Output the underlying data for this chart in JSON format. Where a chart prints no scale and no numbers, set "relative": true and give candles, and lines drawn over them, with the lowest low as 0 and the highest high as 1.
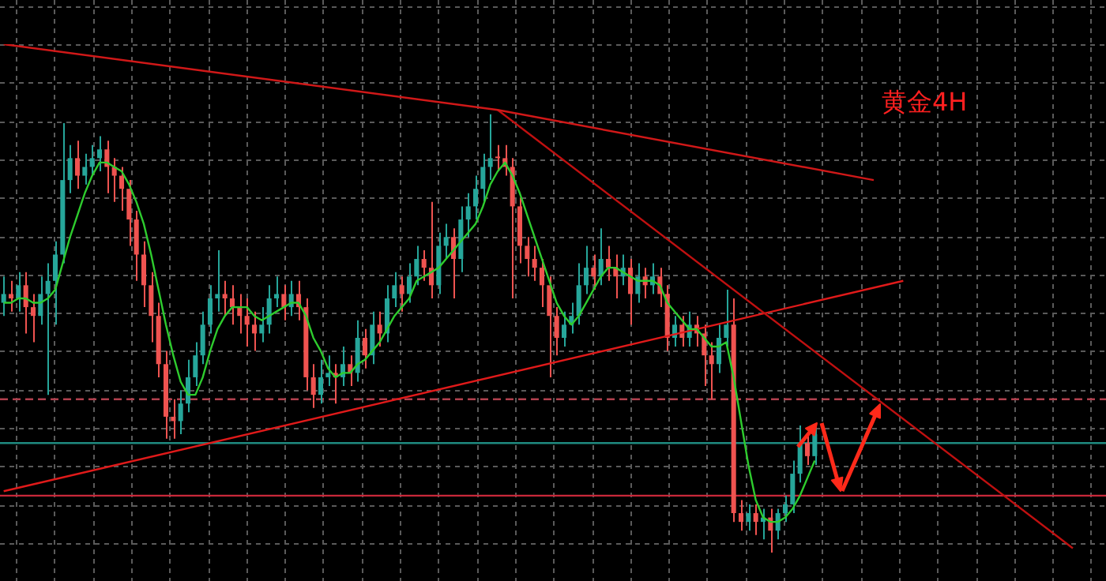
{
  "chart_data": {
    "type": "candlestick",
    "relative": true,
    "grid": true,
    "categories": [
      null,
      null,
      null,
      null,
      null,
      null,
      null,
      null,
      null,
      null,
      null,
      null,
      null,
      null,
      null,
      null,
      null,
      null,
      null,
      null,
      null,
      null,
      null,
      null,
      null,
      null,
      null,
      null,
      null,
      null,
      null,
      null,
      null,
      null,
      null,
      null,
      null,
      null,
      null,
      null,
      null,
      null,
      null,
      null,
      null,
      null,
      null,
      null,
      null,
      null,
      null,
      null,
      null,
      null,
      null,
      null,
      null,
      null,
      null,
      null,
      null,
      null,
      null,
      null,
      null,
      null,
      null,
      null,
      null,
      null,
      null,
      null,
      null,
      null,
      null,
      null,
      null,
      null,
      null,
      null,
      null,
      null,
      null,
      null,
      null,
      null,
      null,
      null,
      null,
      null,
      null,
      null,
      null,
      null,
      null,
      null,
      null,
      null,
      null,
      null,
      null,
      null,
      null,
      null,
      null,
      null,
      null,
      null,
      null,
      null,
      null,
      null,
      null,
      null,
      null,
      null,
      null,
      null,
      null,
      null,
      null,
      null,
      null,
      null,
      null,
      null,
      null,
      null,
      null,
      null,
      null,
      null,
      null,
      null,
      null,
      null,
      null,
      null,
      null,
      null,
      null,
      null,
      null,
      null,
      null,
      null,
      null,
      null,
      null,
      null
    ],
    "ohlc": [
      [
        0.57,
        0.63,
        0.54,
        0.59
      ],
      [
        0.59,
        0.62,
        0.55,
        0.58
      ],
      [
        0.58,
        0.64,
        0.55,
        0.61
      ],
      [
        0.61,
        0.64,
        0.5,
        0.56
      ],
      [
        0.56,
        0.59,
        0.48,
        0.54
      ],
      [
        0.54,
        0.63,
        0.52,
        0.59
      ],
      [
        0.59,
        0.66,
        0.36,
        0.62
      ],
      [
        0.62,
        0.71,
        0.52,
        0.68
      ],
      [
        0.68,
        0.98,
        0.66,
        0.85
      ],
      [
        0.85,
        0.93,
        0.82,
        0.9
      ],
      [
        0.9,
        0.94,
        0.83,
        0.86
      ],
      [
        0.86,
        0.91,
        0.84,
        0.88
      ],
      [
        0.88,
        0.93,
        0.86,
        0.9
      ],
      [
        0.9,
        0.95,
        0.87,
        0.92
      ],
      [
        0.92,
        0.94,
        0.82,
        0.88
      ],
      [
        0.88,
        0.9,
        0.8,
        0.86
      ],
      [
        0.86,
        0.88,
        0.78,
        0.83
      ],
      [
        0.83,
        0.85,
        0.7,
        0.76
      ],
      [
        0.76,
        0.78,
        0.62,
        0.68
      ],
      [
        0.68,
        0.71,
        0.56,
        0.61
      ],
      [
        0.61,
        0.64,
        0.48,
        0.54
      ],
      [
        0.54,
        0.57,
        0.4,
        0.43
      ],
      [
        0.43,
        0.46,
        0.26,
        0.31
      ],
      [
        0.31,
        0.35,
        0.26,
        0.3
      ],
      [
        0.3,
        0.37,
        0.27,
        0.34
      ],
      [
        0.34,
        0.44,
        0.32,
        0.4
      ],
      [
        0.4,
        0.48,
        0.38,
        0.45
      ],
      [
        0.45,
        0.55,
        0.43,
        0.52
      ],
      [
        0.52,
        0.61,
        0.5,
        0.58
      ],
      [
        0.58,
        0.69,
        0.55,
        0.59
      ],
      [
        0.59,
        0.62,
        0.54,
        0.58
      ],
      [
        0.58,
        0.61,
        0.52,
        0.56
      ],
      [
        0.56,
        0.59,
        0.5,
        0.54
      ],
      [
        0.54,
        0.58,
        0.47,
        0.52
      ],
      [
        0.52,
        0.55,
        0.46,
        0.5
      ],
      [
        0.5,
        0.56,
        0.48,
        0.52
      ],
      [
        0.52,
        0.61,
        0.5,
        0.58
      ],
      [
        0.58,
        0.63,
        0.56,
        0.59
      ],
      [
        0.59,
        0.61,
        0.53,
        0.56
      ],
      [
        0.56,
        0.62,
        0.54,
        0.59
      ],
      [
        0.59,
        0.62,
        0.53,
        0.56
      ],
      [
        0.56,
        0.58,
        0.37,
        0.4
      ],
      [
        0.4,
        0.43,
        0.33,
        0.36
      ],
      [
        0.36,
        0.44,
        0.34,
        0.4
      ],
      [
        0.4,
        0.45,
        0.38,
        0.41
      ],
      [
        0.41,
        0.43,
        0.34,
        0.4
      ],
      [
        0.4,
        0.47,
        0.38,
        0.43
      ],
      [
        0.43,
        0.45,
        0.38,
        0.41
      ],
      [
        0.41,
        0.53,
        0.39,
        0.49
      ],
      [
        0.49,
        0.51,
        0.42,
        0.45
      ],
      [
        0.45,
        0.55,
        0.43,
        0.52
      ],
      [
        0.52,
        0.55,
        0.47,
        0.5
      ],
      [
        0.5,
        0.61,
        0.48,
        0.58
      ],
      [
        0.58,
        0.64,
        0.56,
        0.61
      ],
      [
        0.61,
        0.63,
        0.55,
        0.59
      ],
      [
        0.59,
        0.66,
        0.57,
        0.63
      ],
      [
        0.63,
        0.7,
        0.61,
        0.67
      ],
      [
        0.67,
        0.69,
        0.62,
        0.65
      ],
      [
        0.65,
        0.8,
        0.58,
        0.61
      ],
      [
        0.61,
        0.73,
        0.59,
        0.7
      ],
      [
        0.7,
        0.75,
        0.67,
        0.72
      ],
      [
        0.72,
        0.74,
        0.58,
        0.67
      ],
      [
        0.67,
        0.79,
        0.64,
        0.76
      ],
      [
        0.76,
        0.82,
        0.72,
        0.79
      ],
      [
        0.79,
        0.86,
        0.76,
        0.83
      ],
      [
        0.83,
        0.91,
        0.8,
        0.88
      ],
      [
        0.88,
        1.0,
        0.85,
        0.9
      ],
      [
        0.9,
        0.93,
        0.87,
        0.9
      ],
      [
        0.9,
        0.93,
        0.86,
        0.88
      ],
      [
        0.88,
        0.9,
        0.58,
        0.79
      ],
      [
        0.79,
        0.81,
        0.66,
        0.7
      ],
      [
        0.7,
        0.72,
        0.63,
        0.67
      ],
      [
        0.67,
        0.7,
        0.62,
        0.65
      ],
      [
        0.65,
        0.67,
        0.56,
        0.61
      ],
      [
        0.61,
        0.63,
        0.4,
        0.54
      ],
      [
        0.54,
        0.56,
        0.45,
        0.49
      ],
      [
        0.49,
        0.55,
        0.47,
        0.52
      ],
      [
        0.52,
        0.57,
        0.5,
        0.54
      ],
      [
        0.54,
        0.66,
        0.52,
        0.61
      ],
      [
        0.61,
        0.7,
        0.59,
        0.65
      ],
      [
        0.65,
        0.68,
        0.6,
        0.63
      ],
      [
        0.63,
        0.74,
        0.61,
        0.67
      ],
      [
        0.67,
        0.7,
        0.62,
        0.65
      ],
      [
        0.65,
        0.68,
        0.58,
        0.63
      ],
      [
        0.63,
        0.68,
        0.61,
        0.65
      ],
      [
        0.65,
        0.67,
        0.52,
        0.59
      ],
      [
        0.59,
        0.66,
        0.57,
        0.63
      ],
      [
        0.63,
        0.65,
        0.58,
        0.61
      ],
      [
        0.61,
        0.66,
        0.59,
        0.63
      ],
      [
        0.63,
        0.65,
        0.56,
        0.59
      ],
      [
        0.59,
        0.61,
        0.46,
        0.49
      ],
      [
        0.49,
        0.54,
        0.47,
        0.52
      ],
      [
        0.52,
        0.54,
        0.47,
        0.49
      ],
      [
        0.49,
        0.55,
        0.47,
        0.52
      ],
      [
        0.52,
        0.54,
        0.47,
        0.5
      ],
      [
        0.5,
        0.52,
        0.38,
        0.45
      ],
      [
        0.45,
        0.48,
        0.35,
        0.43
      ],
      [
        0.43,
        0.52,
        0.41,
        0.49
      ],
      [
        0.49,
        0.6,
        0.47,
        0.52
      ],
      [
        0.52,
        0.58,
        0.07,
        0.09
      ],
      [
        0.09,
        0.12,
        0.05,
        0.07
      ],
      [
        0.07,
        0.11,
        0.05,
        0.09
      ],
      [
        0.09,
        0.11,
        0.04,
        0.07
      ],
      [
        0.07,
        0.1,
        0.03,
        0.08
      ],
      [
        0.08,
        0.1,
        0.0,
        0.05
      ],
      [
        0.05,
        0.1,
        0.03,
        0.09
      ],
      [
        0.09,
        0.13,
        0.07,
        0.11
      ],
      [
        0.11,
        0.21,
        0.09,
        0.18
      ],
      [
        0.18,
        0.29,
        0.16,
        0.25
      ],
      [
        0.25,
        0.27,
        0.2,
        0.22
      ],
      [
        0.22,
        0.29,
        0.2,
        0.27
      ],
      null,
      null,
      null,
      null,
      null,
      null,
      null,
      null,
      null,
      null,
      null,
      null,
      null,
      null,
      null,
      null,
      null,
      null,
      null,
      null,
      null,
      null,
      null,
      null,
      null,
      null,
      null,
      null,
      null,
      null,
      null,
      null,
      null,
      null,
      null,
      null,
      null,
      null,
      null
    ],
    "colors": [
      "#26a69a",
      "#ef5350",
      "#26a69a",
      "#ef5350",
      "#ef5350",
      "#26a69a",
      "#26a69a",
      "#26a69a",
      "#26a69a",
      "#26a69a",
      "#ef5350",
      "#26a69a",
      "#26a69a",
      "#26a69a",
      "#ef5350",
      "#ef5350",
      "#ef5350",
      "#ef5350",
      "#ef5350",
      "#ef5350",
      "#ef5350",
      "#ef5350",
      "#ef5350",
      "#ef5350",
      "#26a69a",
      "#26a69a",
      "#26a69a",
      "#26a69a",
      "#26a69a",
      "#26a69a",
      "#ef5350",
      "#ef5350",
      "#ef5350",
      "#ef5350",
      "#ef5350",
      "#26a69a",
      "#26a69a",
      "#26a69a",
      "#ef5350",
      "#26a69a",
      "#ef5350",
      "#ef5350",
      "#ef5350",
      "#26a69a",
      "#26a69a",
      "#ef5350",
      "#26a69a",
      "#ef5350",
      "#26a69a",
      "#ef5350",
      "#26a69a",
      "#ef5350",
      "#26a69a",
      "#26a69a",
      "#ef5350",
      "#26a69a",
      "#26a69a",
      "#ef5350",
      "#ef5350",
      "#26a69a",
      "#26a69a",
      "#ef5350",
      "#26a69a",
      "#26a69a",
      "#26a69a",
      "#26a69a",
      "#26a69a",
      "#ef5350",
      "#ef5350",
      "#ef5350",
      "#ef5350",
      "#ef5350",
      "#ef5350",
      "#ef5350",
      "#ef5350",
      "#ef5350",
      "#26a69a",
      "#26a69a",
      "#26a69a",
      "#26a69a",
      "#ef5350",
      "#26a69a",
      "#ef5350",
      "#ef5350",
      "#26a69a",
      "#ef5350",
      "#26a69a",
      "#ef5350",
      "#26a69a",
      "#ef5350",
      "#ef5350",
      "#26a69a",
      "#ef5350",
      "#26a69a",
      "#ef5350",
      "#ef5350",
      "#ef5350",
      "#26a69a",
      "#26a69a",
      "#ef5350",
      "#ef5350",
      "#26a69a",
      "#ef5350",
      "#26a69a",
      "#ef5350",
      "#26a69a",
      "#26a69a",
      "#26a69a",
      "#26a69a",
      "#ef5350",
      "#26a69a",
      null,
      null,
      null,
      null,
      null,
      null,
      null,
      null,
      null,
      null,
      null,
      null,
      null,
      null,
      null,
      null,
      null,
      null,
      null,
      null,
      null,
      null,
      null,
      null,
      null,
      null,
      null,
      null,
      null,
      null,
      null,
      null,
      null,
      null,
      null,
      null,
      null,
      null,
      null
    ],
    "series": [
      {
        "type": "line",
        "color": "#2ecc2e",
        "values": [
          0.57,
          0.57,
          0.58,
          0.58,
          0.57,
          0.57,
          0.58,
          0.6,
          0.66,
          0.72,
          0.77,
          0.82,
          0.86,
          0.89,
          0.89,
          0.88,
          0.87,
          0.84,
          0.8,
          0.75,
          0.68,
          0.6,
          0.52,
          0.45,
          0.39,
          0.36,
          0.36,
          0.4,
          0.46,
          0.51,
          0.54,
          0.56,
          0.56,
          0.56,
          0.54,
          0.53,
          0.54,
          0.55,
          0.56,
          0.57,
          0.57,
          0.54,
          0.49,
          0.46,
          0.42,
          0.4,
          0.41,
          0.41,
          0.43,
          0.44,
          0.46,
          0.48,
          0.51,
          0.54,
          0.56,
          0.58,
          0.62,
          0.63,
          0.64,
          0.65,
          0.67,
          0.69,
          0.71,
          0.73,
          0.75,
          0.79,
          0.84,
          0.87,
          0.89,
          0.86,
          0.82,
          0.77,
          0.72,
          0.67,
          0.62,
          0.57,
          0.54,
          0.52,
          0.54,
          0.57,
          0.6,
          0.63,
          0.65,
          0.65,
          0.64,
          0.63,
          0.62,
          0.62,
          0.62,
          0.61,
          0.57,
          0.55,
          0.53,
          0.51,
          0.51,
          0.49,
          0.47,
          0.47,
          0.48,
          0.4,
          0.3,
          0.2,
          0.12,
          0.08,
          0.07,
          0.07,
          0.08,
          0.1,
          0.13,
          0.17,
          0.21,
          null,
          null,
          null,
          null,
          null,
          null,
          null,
          null,
          null,
          null,
          null,
          null,
          null,
          null,
          null,
          null,
          null,
          null,
          null,
          null,
          null,
          null,
          null,
          null,
          null,
          null,
          null,
          null,
          null,
          null,
          null,
          null,
          null,
          null,
          null,
          null,
          null,
          null,
          null
        ]
      },
      {
        "type": "line",
        "color": "#d01818",
        "values": [
          1.16,
          null,
          null,
          null,
          null,
          null,
          null,
          null,
          null,
          null,
          null,
          null,
          null,
          null,
          null,
          null,
          null,
          null,
          null,
          null,
          null,
          null,
          null,
          null,
          null,
          null,
          null,
          null,
          null,
          null,
          null,
          null,
          null,
          null,
          null,
          null,
          null,
          null,
          null,
          null,
          null,
          null,
          null,
          null,
          null,
          null,
          null,
          null,
          null,
          null,
          null,
          null,
          null,
          null,
          null,
          null,
          null,
          null,
          null,
          null,
          null,
          null,
          null,
          null,
          null,
          null,
          null,
          1.01,
          null,
          null,
          null,
          null,
          null,
          null,
          null,
          null,
          null,
          null,
          null,
          null,
          null,
          null,
          null,
          null,
          null,
          null,
          null,
          null,
          null,
          null,
          null,
          null,
          null,
          null,
          null,
          null,
          null,
          null,
          null,
          null,
          null,
          null,
          null,
          null,
          null,
          null,
          null,
          null,
          null,
          null,
          null,
          null,
          null,
          null,
          null,
          null,
          null,
          null,
          0.85,
          null,
          null,
          null,
          null,
          null,
          null,
          null,
          null,
          null,
          null,
          null,
          null,
          null,
          null,
          null,
          null,
          null,
          null,
          null,
          null,
          null,
          null,
          null,
          null,
          null,
          null,
          null,
          null,
          null,
          null,
          null
        ]
      },
      {
        "type": "line",
        "color": "#c01010",
        "values": [
          null,
          null,
          null,
          null,
          null,
          null,
          null,
          null,
          null,
          null,
          null,
          null,
          null,
          null,
          null,
          null,
          null,
          null,
          null,
          null,
          null,
          null,
          null,
          null,
          null,
          null,
          null,
          null,
          null,
          null,
          null,
          null,
          null,
          null,
          null,
          null,
          null,
          null,
          null,
          null,
          null,
          null,
          null,
          null,
          null,
          null,
          null,
          null,
          null,
          null,
          null,
          null,
          null,
          null,
          null,
          null,
          null,
          null,
          null,
          null,
          null,
          null,
          null,
          null,
          null,
          null,
          null,
          1.01,
          null,
          null,
          null,
          null,
          null,
          null,
          null,
          null,
          null,
          null,
          null,
          null,
          null,
          null,
          null,
          null,
          null,
          null,
          null,
          null,
          null,
          null,
          null,
          null,
          null,
          null,
          null,
          null,
          null,
          null,
          null,
          null,
          null,
          null,
          null,
          null,
          null,
          null,
          null,
          null,
          null,
          null,
          null,
          null,
          null,
          null,
          null,
          null,
          null,
          null,
          null,
          null,
          null,
          null,
          null,
          null,
          null,
          null,
          null,
          null,
          null,
          null,
          null,
          null,
          null,
          null,
          null,
          null,
          null,
          null,
          null,
          null,
          null,
          null,
          null,
          null,
          null,
          0.01,
          null,
          null,
          null,
          null
        ]
      },
      {
        "type": "line",
        "color": "#e01a1a",
        "values": [
          0.14,
          null,
          null,
          null,
          null,
          null,
          null,
          null,
          null,
          null,
          null,
          null,
          null,
          null,
          null,
          null,
          null,
          null,
          null,
          null,
          null,
          null,
          null,
          null,
          null,
          null,
          null,
          null,
          null,
          null,
          null,
          null,
          null,
          null,
          null,
          null,
          null,
          null,
          null,
          null,
          null,
          null,
          null,
          null,
          null,
          null,
          null,
          null,
          null,
          null,
          null,
          null,
          null,
          null,
          null,
          null,
          null,
          null,
          null,
          null,
          null,
          null,
          null,
          null,
          null,
          null,
          null,
          null,
          null,
          null,
          null,
          null,
          null,
          null,
          null,
          null,
          null,
          null,
          null,
          null,
          null,
          null,
          null,
          null,
          null,
          null,
          null,
          null,
          null,
          null,
          null,
          null,
          null,
          null,
          null,
          null,
          null,
          null,
          null,
          null,
          null,
          null,
          null,
          null,
          null,
          null,
          null,
          null,
          null,
          null,
          null,
          null,
          null,
          null,
          null,
          null,
          null,
          null,
          null,
          null,
          null,
          null,
          0.62,
          null,
          null,
          null,
          null,
          null,
          null,
          null,
          null,
          null,
          null,
          null,
          null,
          null,
          null,
          null,
          null,
          null,
          null,
          null,
          null,
          null,
          null,
          null,
          null,
          null,
          null,
          null
        ]
      }
    ],
    "ref_lines": [
      {
        "axis": "y",
        "value": 0.35,
        "color": "#b0404e",
        "line_style": "dashed"
      },
      {
        "axis": "y",
        "value": 0.25,
        "color": "#1f8a80"
      },
      {
        "axis": "y",
        "value": 0.13,
        "color": "#c8283a"
      }
    ],
    "annotations": [
      "黄金4H"
    ]
  }
}
